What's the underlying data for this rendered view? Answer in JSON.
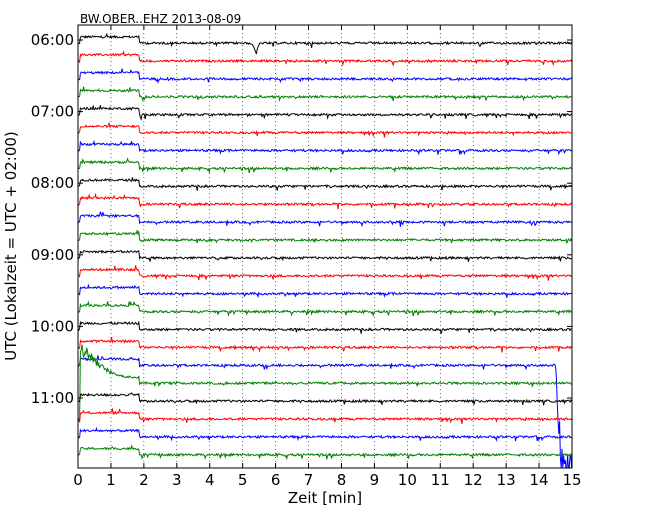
{
  "chart_data": {
    "type": "line",
    "title": "BW.OBER..EHZ 2013-08-09",
    "xlabel": "Zeit  [min]",
    "ylabel": "UTC (Lokalzeit = UTC + 02:00)",
    "xlim": [
      0,
      15
    ],
    "x_ticks": [
      "0",
      "1",
      "2",
      "3",
      "4",
      "5",
      "6",
      "7",
      "8",
      "9",
      "10",
      "11",
      "12",
      "13",
      "14",
      "15"
    ],
    "y_ticks": [
      "06:00",
      "07:00",
      "08:00",
      "09:00",
      "10:00",
      "11:00"
    ],
    "grid": "vertical dotted",
    "trace_colors": [
      "#000000",
      "#ff0000",
      "#0000ff",
      "#008000"
    ],
    "series": [
      {
        "start": "06:00",
        "color": "#000000"
      },
      {
        "start": "06:15",
        "color": "#ff0000"
      },
      {
        "start": "06:30",
        "color": "#0000ff"
      },
      {
        "start": "06:45",
        "color": "#008000"
      },
      {
        "start": "07:00",
        "color": "#000000"
      },
      {
        "start": "07:15",
        "color": "#ff0000"
      },
      {
        "start": "07:30",
        "color": "#0000ff"
      },
      {
        "start": "07:45",
        "color": "#008000"
      },
      {
        "start": "08:00",
        "color": "#000000"
      },
      {
        "start": "08:15",
        "color": "#ff0000"
      },
      {
        "start": "08:30",
        "color": "#0000ff"
      },
      {
        "start": "08:45",
        "color": "#008000"
      },
      {
        "start": "09:00",
        "color": "#000000"
      },
      {
        "start": "09:15",
        "color": "#ff0000"
      },
      {
        "start": "09:30",
        "color": "#0000ff"
      },
      {
        "start": "09:45",
        "color": "#008000"
      },
      {
        "start": "10:00",
        "color": "#000000"
      },
      {
        "start": "10:15",
        "color": "#ff0000"
      },
      {
        "start": "10:30",
        "color": "#0000ff"
      },
      {
        "start": "10:45",
        "color": "#008000"
      },
      {
        "start": "11:00",
        "color": "#000000"
      },
      {
        "start": "11:15",
        "color": "#ff0000"
      },
      {
        "start": "11:30",
        "color": "#0000ff"
      },
      {
        "start": "11:45",
        "color": "#008000"
      }
    ],
    "events": [
      {
        "start": "06:00",
        "time_min": 5.4,
        "amplitude": "small spike"
      },
      {
        "start": "10:45",
        "time_min": 0.0,
        "amplitude": "large, decaying to ~1.5 min"
      },
      {
        "start": "10:30",
        "time_min": 14.5,
        "amplitude": "very large, continues to end"
      }
    ]
  }
}
